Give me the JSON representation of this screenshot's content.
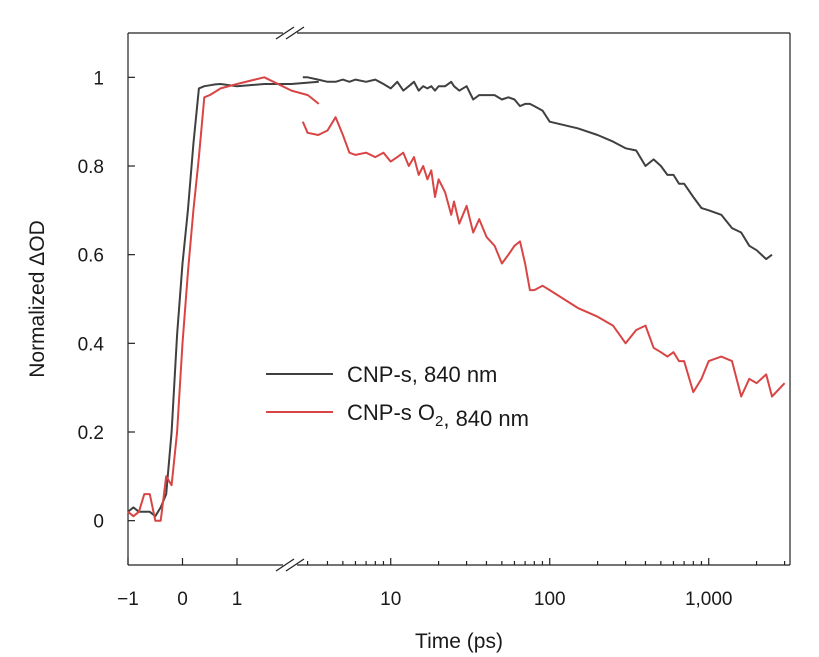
{
  "chart_data": {
    "type": "line",
    "xlabel": "Time (ps)",
    "ylabel": "Normalized ΔOD",
    "x_scale": "linear from -1 to the axis break, logarithmic from 2.5 ps to 3,000 ps",
    "xlim": [
      -1,
      3000
    ],
    "ylim": [
      -0.1,
      1.1
    ],
    "x_ticks": [
      {
        "value": -1,
        "label": "−1"
      },
      {
        "value": 0,
        "label": "0"
      },
      {
        "value": 1,
        "label": "1"
      },
      {
        "value": 10,
        "label": "10"
      },
      {
        "value": 100,
        "label": "100"
      },
      {
        "value": 1000,
        "label": "1,000"
      }
    ],
    "y_ticks": [
      {
        "value": 0,
        "label": "0"
      },
      {
        "value": 0.2,
        "label": "0.2"
      },
      {
        "value": 0.4,
        "label": "0.4"
      },
      {
        "value": 0.6,
        "label": "0.6"
      },
      {
        "value": 0.8,
        "label": "0.8"
      },
      {
        "value": 1,
        "label": "1"
      }
    ],
    "axis_break": true,
    "grid": false,
    "legend_position": "center",
    "series": [
      {
        "name": "CNP-s, 840 nm",
        "color": "#404040",
        "x": [
          -1.0,
          -0.9,
          -0.8,
          -0.7,
          -0.6,
          -0.5,
          -0.4,
          -0.3,
          -0.2,
          -0.1,
          0.0,
          0.1,
          0.2,
          0.3,
          0.4,
          0.5,
          0.6,
          0.7,
          1.0,
          1.5,
          2.0,
          2.5,
          2.8,
          3,
          3.5,
          4,
          4.5,
          5,
          5.5,
          6,
          7,
          8,
          9,
          10,
          11,
          12,
          13,
          14,
          15,
          16,
          17,
          18,
          19,
          20,
          22,
          24,
          25,
          27,
          30,
          33,
          36,
          40,
          45,
          50,
          55,
          60,
          65,
          70,
          75,
          80,
          90,
          100,
          150,
          200,
          250,
          300,
          350,
          400,
          450,
          500,
          550,
          600,
          650,
          700,
          800,
          900,
          1000,
          1200,
          1400,
          1600,
          1800,
          2000,
          2300,
          2500
        ],
        "y": [
          0.02,
          0.03,
          0.02,
          0.02,
          0.02,
          0.01,
          0.03,
          0.06,
          0.2,
          0.42,
          0.58,
          0.7,
          0.85,
          0.975,
          0.98,
          0.982,
          0.984,
          0.985,
          0.98,
          0.985,
          0.985,
          0.99,
          1.0,
          1.0,
          0.995,
          0.99,
          0.99,
          0.995,
          0.99,
          0.995,
          0.99,
          0.995,
          0.985,
          0.975,
          0.99,
          0.97,
          0.98,
          0.99,
          0.97,
          0.98,
          0.975,
          0.98,
          0.97,
          0.98,
          0.98,
          0.99,
          0.98,
          0.97,
          0.98,
          0.95,
          0.96,
          0.96,
          0.96,
          0.95,
          0.955,
          0.95,
          0.935,
          0.94,
          0.94,
          0.935,
          0.925,
          0.9,
          0.885,
          0.87,
          0.855,
          0.84,
          0.835,
          0.8,
          0.815,
          0.8,
          0.78,
          0.78,
          0.76,
          0.76,
          0.73,
          0.705,
          0.7,
          0.69,
          0.66,
          0.65,
          0.62,
          0.61,
          0.59,
          0.6
        ]
      },
      {
        "name": "CNP-s O₂, 840 nm",
        "color": "#d94545",
        "x": [
          -1.0,
          -0.9,
          -0.8,
          -0.7,
          -0.6,
          -0.5,
          -0.4,
          -0.3,
          -0.2,
          -0.1,
          0.0,
          0.1,
          0.2,
          0.3,
          0.4,
          0.5,
          0.7,
          1.0,
          1.5,
          2.0,
          2.3,
          2.5,
          2.8,
          3,
          3.5,
          4,
          4.5,
          5,
          5.5,
          6,
          7,
          8,
          9,
          10,
          11,
          12,
          13,
          14,
          15,
          16,
          17,
          18,
          19,
          20,
          22,
          24,
          25,
          27,
          30,
          33,
          36,
          40,
          45,
          50,
          55,
          60,
          65,
          70,
          75,
          80,
          90,
          100,
          150,
          200,
          250,
          300,
          350,
          400,
          450,
          500,
          550,
          600,
          650,
          700,
          800,
          900,
          1000,
          1200,
          1400,
          1600,
          1800,
          2000,
          2300,
          2500,
          3000
        ],
        "y": [
          0.02,
          0.01,
          0.02,
          0.06,
          0.06,
          0.0,
          0.0,
          0.1,
          0.08,
          0.2,
          0.4,
          0.56,
          0.7,
          0.82,
          0.955,
          0.96,
          0.975,
          0.985,
          1.0,
          0.97,
          0.96,
          0.94,
          0.9,
          0.875,
          0.87,
          0.88,
          0.91,
          0.87,
          0.83,
          0.825,
          0.83,
          0.82,
          0.83,
          0.81,
          0.82,
          0.83,
          0.8,
          0.82,
          0.78,
          0.8,
          0.77,
          0.79,
          0.73,
          0.77,
          0.74,
          0.69,
          0.72,
          0.67,
          0.71,
          0.65,
          0.68,
          0.64,
          0.62,
          0.58,
          0.6,
          0.62,
          0.63,
          0.58,
          0.52,
          0.52,
          0.53,
          0.52,
          0.48,
          0.46,
          0.44,
          0.4,
          0.43,
          0.44,
          0.39,
          0.38,
          0.37,
          0.38,
          0.36,
          0.36,
          0.29,
          0.32,
          0.36,
          0.37,
          0.36,
          0.28,
          0.32,
          0.31,
          0.33,
          0.28,
          0.31
        ]
      }
    ]
  }
}
